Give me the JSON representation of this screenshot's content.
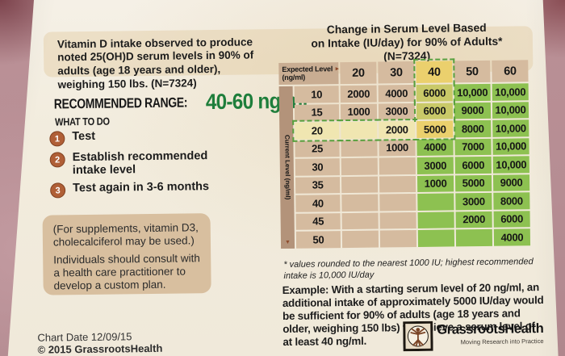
{
  "colors": {
    "background": "#b68d93",
    "paper": "#f2ecdd",
    "accent_green_text": "#1e7e3b",
    "step_circle": "#b05f36",
    "cell_green": "#8dc151",
    "cell_yellow": "#ebd06d",
    "cell_yellow_green": "#c9c968",
    "cell_pale_yellow": "#f0e6b1",
    "cell_tan": "#d5bb9f",
    "highlight_dash": "#58a03e"
  },
  "left_panel": {
    "intro": "Vitamin D intake observed to produce noted 25(OH)D serum levels in 90% of adults (age 18 years and older), weighing 150 lbs. (N=7324)",
    "recommended_range_label": "RECOMMENDED RANGE:",
    "recommended_range_value": "40-60 ng/ml",
    "what_to_do_label": "WHAT TO DO",
    "steps": [
      {
        "num": "1",
        "text": "Test"
      },
      {
        "num": "2",
        "text": "Establish recommended intake level"
      },
      {
        "num": "3",
        "text": "Test again in 3-6 months"
      }
    ],
    "supplement_note": "(For supplements, vitamin D3, cholecalciferol may be used.)",
    "consult_note": "Individuals should consult with a health care practitioner to develop a custom plan.",
    "chart_date": "Chart Date 12/09/15",
    "copyright": "© 2015 GrassrootsHealth"
  },
  "right_panel": {
    "title_line1": "Change in Serum Level Based",
    "title_line2": "on Intake (IU/day) for 90% of Adults*",
    "title_line3": "(N=7324)",
    "table": {
      "corner_label": "Expected Level",
      "corner_unit": "(ng/ml)",
      "corner_arrow": "►",
      "side_label": "Current Level",
      "side_unit": "(ng/ml)",
      "side_arrow": "▼",
      "columns": [
        {
          "label": "20",
          "color": "tan"
        },
        {
          "label": "30",
          "color": "tan"
        },
        {
          "label": "40",
          "color": "yellow",
          "dash": "dt dl dr"
        },
        {
          "label": "50",
          "color": "tan"
        },
        {
          "label": "60",
          "color": "tan"
        }
      ],
      "rows": [
        {
          "label": "10",
          "label_color": "tan",
          "cells": [
            {
              "v": "2000",
              "color": "tan"
            },
            {
              "v": "4000",
              "color": "tan"
            },
            {
              "v": "6000",
              "color": "yg",
              "dash": "dl dr"
            },
            {
              "v": "10,000",
              "color": "green"
            },
            {
              "v": "10,000",
              "color": "green"
            }
          ]
        },
        {
          "label": "15",
          "label_color": "tan",
          "cells": [
            {
              "v": "1000",
              "color": "tan"
            },
            {
              "v": "3000",
              "color": "tan"
            },
            {
              "v": "6000",
              "color": "yg",
              "dash": "dl dr"
            },
            {
              "v": "9000",
              "color": "green"
            },
            {
              "v": "10,000",
              "color": "green"
            }
          ]
        },
        {
          "label": "20",
          "label_color": "pale",
          "label_dash": "dt dl db",
          "cells": [
            {
              "v": "",
              "color": "pale",
              "dash": "dt db"
            },
            {
              "v": "2000",
              "color": "pale",
              "dash": "dt db"
            },
            {
              "v": "5000",
              "color": "yellow",
              "dash": "dr db"
            },
            {
              "v": "8000",
              "color": "green"
            },
            {
              "v": "10,000",
              "color": "green"
            }
          ]
        },
        {
          "label": "25",
          "label_color": "tan",
          "cells": [
            {
              "v": "",
              "color": "tan"
            },
            {
              "v": "1000",
              "color": "tan"
            },
            {
              "v": "4000",
              "color": "green"
            },
            {
              "v": "7000",
              "color": "green"
            },
            {
              "v": "10,000",
              "color": "green"
            }
          ]
        },
        {
          "label": "30",
          "label_color": "tan",
          "cells": [
            {
              "v": "",
              "color": "tan"
            },
            {
              "v": "",
              "color": "tan"
            },
            {
              "v": "3000",
              "color": "green"
            },
            {
              "v": "6000",
              "color": "green"
            },
            {
              "v": "10,000",
              "color": "green"
            }
          ]
        },
        {
          "label": "35",
          "label_color": "tan",
          "cells": [
            {
              "v": "",
              "color": "tan"
            },
            {
              "v": "",
              "color": "tan"
            },
            {
              "v": "1000",
              "color": "green"
            },
            {
              "v": "5000",
              "color": "green"
            },
            {
              "v": "9000",
              "color": "green"
            }
          ]
        },
        {
          "label": "40",
          "label_color": "tan",
          "cells": [
            {
              "v": "",
              "color": "tan"
            },
            {
              "v": "",
              "color": "tan"
            },
            {
              "v": "",
              "color": "green"
            },
            {
              "v": "3000",
              "color": "green"
            },
            {
              "v": "8000",
              "color": "green"
            }
          ]
        },
        {
          "label": "45",
          "label_color": "tan",
          "cells": [
            {
              "v": "",
              "color": "tan"
            },
            {
              "v": "",
              "color": "tan"
            },
            {
              "v": "",
              "color": "green"
            },
            {
              "v": "2000",
              "color": "green"
            },
            {
              "v": "6000",
              "color": "green"
            }
          ]
        },
        {
          "label": "50",
          "label_color": "tan",
          "cells": [
            {
              "v": "",
              "color": "tan"
            },
            {
              "v": "",
              "color": "tan"
            },
            {
              "v": "",
              "color": "green"
            },
            {
              "v": "",
              "color": "green"
            },
            {
              "v": "4000",
              "color": "green"
            }
          ]
        }
      ]
    },
    "footnote": "* values rounded to the nearest 1000 IU; highest recommended intake is 10,000 IU/day",
    "example": "Example: With a starting serum level of 20 ng/ml, an additional intake of approximately 5000 IU/day would be sufficient for 90% of adults (age 18 years and older, weighing 150 lbs) to achieve a serum level of at least 40 ng/ml.",
    "logo": {
      "name": "GrassrootsHealth",
      "tagline": "Moving Research into Practice"
    }
  }
}
